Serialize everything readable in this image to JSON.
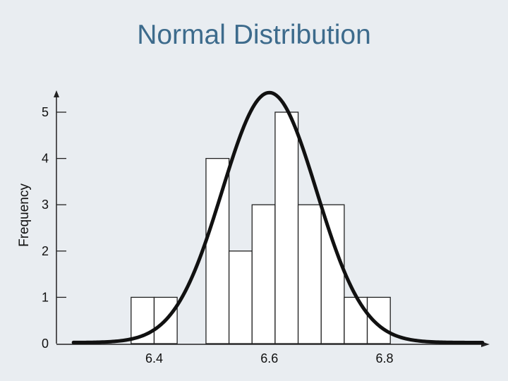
{
  "slide": {
    "title": "Normal Distribution",
    "background": "#e9edf1",
    "title_color": "#3d6b8c"
  },
  "chart_data": {
    "type": "bar",
    "title": "",
    "xlabel": "",
    "ylabel": "Frequency",
    "xlim": [
      6.25,
      6.98
    ],
    "ylim": [
      0,
      5
    ],
    "xticks": [
      6.4,
      6.6,
      6.8
    ],
    "yticks": [
      0,
      1,
      2,
      3,
      4,
      5
    ],
    "bin_width": 0.04,
    "bars": [
      {
        "x0": 6.36,
        "x1": 6.4,
        "value": 1
      },
      {
        "x0": 6.4,
        "x1": 6.44,
        "value": 1
      },
      {
        "x0": 6.49,
        "x1": 6.53,
        "value": 4
      },
      {
        "x0": 6.53,
        "x1": 6.57,
        "value": 2
      },
      {
        "x0": 6.57,
        "x1": 6.61,
        "value": 3
      },
      {
        "x0": 6.61,
        "x1": 6.65,
        "value": 5
      },
      {
        "x0": 6.65,
        "x1": 6.69,
        "value": 3
      },
      {
        "x0": 6.69,
        "x1": 6.73,
        "value": 3
      },
      {
        "x0": 6.73,
        "x1": 6.77,
        "value": 1
      },
      {
        "x0": 6.77,
        "x1": 6.81,
        "value": 1
      }
    ],
    "normal_curve": {
      "mean": 6.6,
      "sd": 0.082,
      "peak": 5.4,
      "x_range": [
        6.26,
        6.97
      ]
    },
    "grid": false,
    "bar_fill": "#ffffff",
    "bar_stroke": "#222222",
    "curve_color": "#111111"
  }
}
